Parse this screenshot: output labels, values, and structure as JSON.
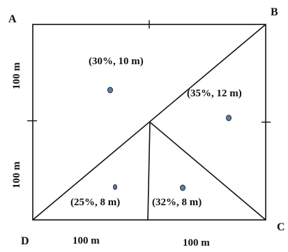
{
  "vertices": {
    "a": "A",
    "b": "B",
    "c": "C",
    "d": "D"
  },
  "dimensions": {
    "left_upper": "100 m",
    "left_lower": "100 m",
    "bottom_left": "100 m",
    "bottom_right": "100 m"
  },
  "regions": [
    {
      "label": "(30%, 10 m)"
    },
    {
      "label": "(35%, 12 m)"
    },
    {
      "label": "(25%, 8 m)"
    },
    {
      "label": "(32%, 8 m)"
    }
  ],
  "colors": {
    "line": "#111111",
    "point": "#5e7fa8"
  }
}
